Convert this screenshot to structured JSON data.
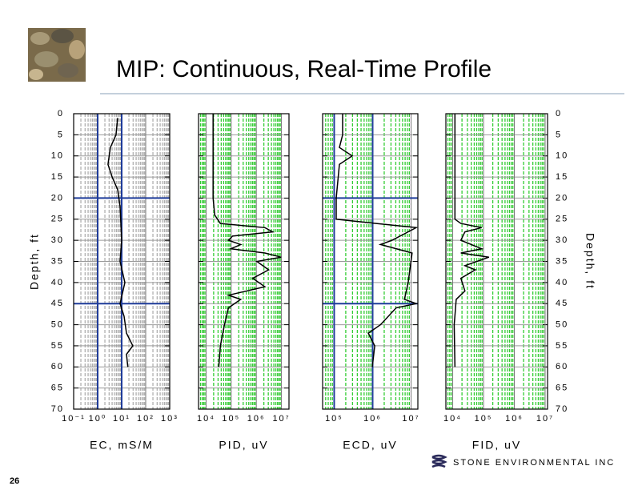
{
  "title": "MIP: Continuous, Real-Time Profile",
  "page_number": "26",
  "logo": "STONE ENVIRONMENTAL INC",
  "chart_data": [
    {
      "type": "line",
      "x_label": "EC, mS/M",
      "y_label": "Depth, ft",
      "y_label_side": "left",
      "log_x": true,
      "xlim": [
        0.1,
        1000
      ],
      "xticks": [
        {
          "value": 0.1,
          "label": "10⁻¹"
        },
        {
          "value": 1,
          "label": "10⁰"
        },
        {
          "value": 10,
          "label": "10¹"
        },
        {
          "value": 100,
          "label": "10²"
        },
        {
          "value": 1000,
          "label": "10³"
        }
      ],
      "ylim": [
        0,
        70
      ],
      "yticks": [
        0,
        5,
        10,
        15,
        20,
        25,
        30,
        35,
        40,
        45,
        50,
        55,
        60,
        65,
        70
      ],
      "grid": true,
      "minor_grid_color": "#b0b0b0",
      "reference_color": "#1f3c9a",
      "reference_x": [
        1,
        10
      ],
      "reference_y": [
        20,
        45
      ],
      "series": [
        {
          "color": "#000000",
          "depths": [
            1,
            5,
            8,
            12,
            15,
            18,
            22,
            30,
            35,
            40,
            45,
            48,
            52,
            55,
            57,
            60
          ],
          "values": [
            6.8,
            5.8,
            3.4,
            2.7,
            4,
            6.8,
            8.6,
            10,
            8.6,
            13.6,
            8.6,
            12.6,
            15.8,
            29,
            15.8,
            18
          ]
        }
      ]
    },
    {
      "type": "line",
      "x_label": "PID, uV",
      "log_x": true,
      "xlim": [
        5000,
        20000000
      ],
      "xticks": [
        {
          "value": 10000,
          "label": "10⁴"
        },
        {
          "value": 100000,
          "label": "10⁵"
        },
        {
          "value": 1000000,
          "label": "10⁶"
        },
        {
          "value": 10000000,
          "label": "10⁷"
        }
      ],
      "ylim": [
        0,
        70
      ],
      "yticks": [
        0,
        5,
        10,
        15,
        20,
        25,
        30,
        35,
        40,
        45,
        50,
        55,
        60,
        65,
        70
      ],
      "grid": true,
      "minor_grid_color": "#33cc33",
      "series": [
        {
          "color": "#000000",
          "depths": [
            0,
            20,
            24,
            26,
            27,
            28,
            29,
            30,
            31,
            32,
            33,
            34,
            35,
            37,
            39,
            41,
            43,
            44,
            46,
            50,
            55,
            60
          ],
          "values": [
            19000,
            19000,
            22000,
            37000,
            2200000,
            4500000,
            113000,
            78000,
            240000,
            97000,
            2200000,
            9700000,
            1050000,
            3100000,
            720000,
            2200000,
            78000,
            240000,
            78000,
            54000,
            37000,
            32000
          ]
        }
      ]
    },
    {
      "type": "line",
      "x_label": "ECD, uV",
      "log_x": true,
      "xlim": [
        50000,
        15000000
      ],
      "xticks": [
        {
          "value": 100000,
          "label": "10⁵"
        },
        {
          "value": 1000000,
          "label": "10⁶"
        },
        {
          "value": 10000000,
          "label": "10⁷"
        }
      ],
      "ylim": [
        0,
        70
      ],
      "yticks": [
        0,
        5,
        10,
        15,
        20,
        25,
        30,
        35,
        40,
        45,
        50,
        55,
        60,
        65,
        70
      ],
      "grid": true,
      "minor_grid_color": "#33cc33",
      "reference_color": "#1f3c9a",
      "reference_x": [
        100000,
        1000000
      ],
      "reference_y": [
        20,
        45
      ],
      "series": [
        {
          "color": "#000000",
          "depths": [
            0,
            5,
            8,
            10,
            12,
            20,
            25,
            26,
            27,
            30,
            31,
            33,
            40,
            44,
            45,
            46,
            50,
            52,
            55,
            60
          ],
          "values": [
            166000,
            166000,
            137000,
            295000,
            137000,
            113000,
            113000,
            1240000,
            13600000,
            3200000,
            1600000,
            10600000,
            8400000,
            6700000,
            13600000,
            4100000,
            1600000,
            772000,
            1130000,
            980000
          ]
        }
      ]
    },
    {
      "type": "line",
      "x_label": "FID, uV",
      "y_label": "Depth, ft",
      "y_label_side": "right",
      "log_x": true,
      "xlim": [
        6000,
        12000000
      ],
      "xticks": [
        {
          "value": 10000,
          "label": "10⁴"
        },
        {
          "value": 100000,
          "label": "10⁵"
        },
        {
          "value": 1000000,
          "label": "10⁶"
        },
        {
          "value": 10000000,
          "label": "10⁷"
        }
      ],
      "ylim": [
        0,
        70
      ],
      "yticks": [
        0,
        5,
        10,
        15,
        20,
        25,
        30,
        35,
        40,
        45,
        50,
        55,
        60,
        65,
        70
      ],
      "grid": true,
      "minor_grid_color": "#33cc33",
      "series": [
        {
          "color": "#000000",
          "depths": [
            0,
            25,
            26,
            27,
            28,
            30,
            32,
            33,
            34,
            36,
            37,
            39,
            42,
            44,
            50,
            60
          ],
          "values": [
            11800,
            11800,
            18400,
            87000,
            25000,
            18400,
            87000,
            18400,
            150000,
            25000,
            54000,
            18400,
            25000,
            13000,
            11200,
            11800
          ]
        }
      ]
    }
  ]
}
